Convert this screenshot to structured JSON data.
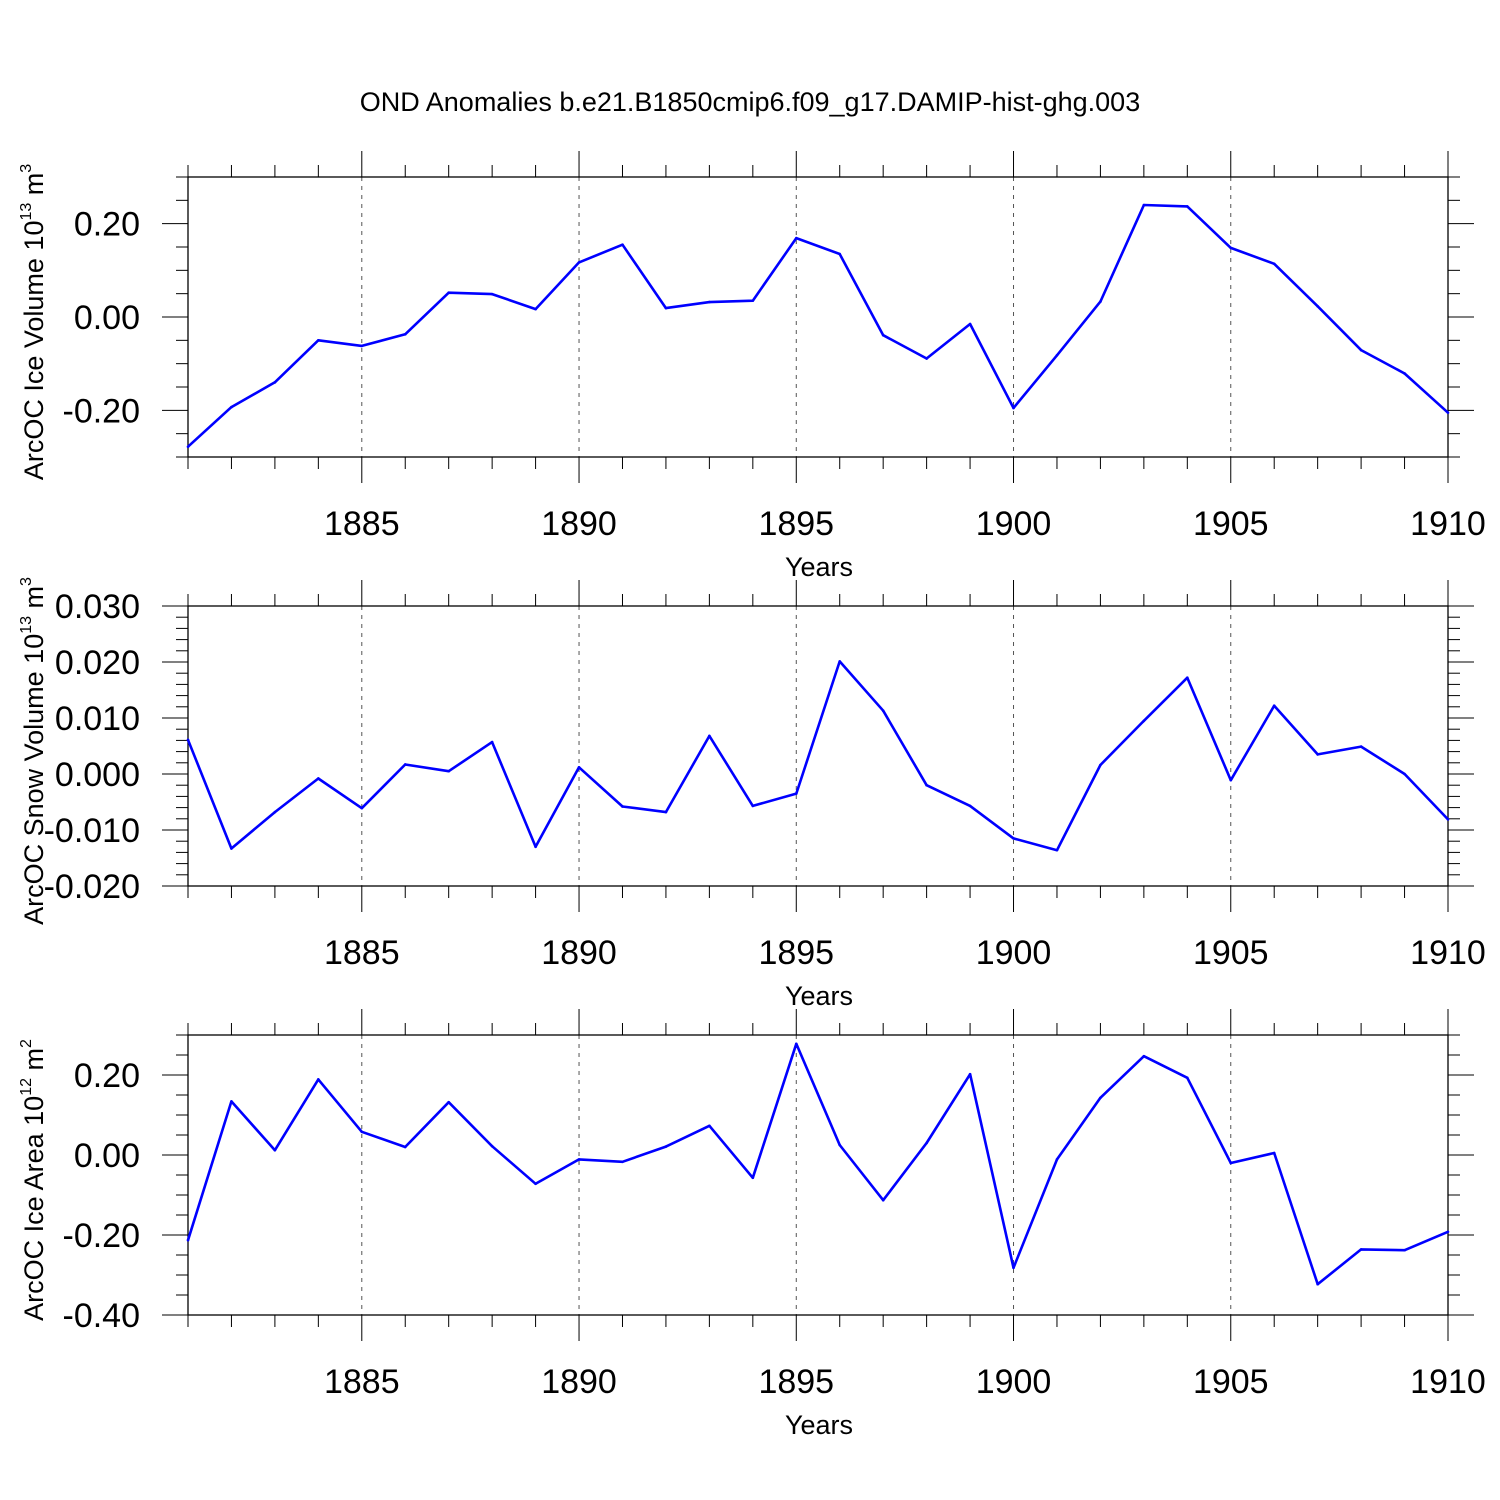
{
  "title": "OND Anomalies b.e21.B1850cmip6.f09_g17.DAMIP-hist-ghg.003",
  "colors": {
    "line": "#0000ff",
    "frame": "#000000",
    "grid": "#555555"
  },
  "chart_data": [
    {
      "type": "line",
      "ylabel": {
        "text": "ArcOC Ice Volume 10",
        "exp": "13",
        "unit": " m",
        "unit_exp": "3"
      },
      "xlabel": "Years",
      "xlim": [
        1881,
        1910
      ],
      "ylim": [
        -0.3,
        0.3
      ],
      "xticks": [
        1885,
        1890,
        1895,
        1900,
        1905,
        1910
      ],
      "xtick_labels": [
        "1885",
        "1890",
        "1895",
        "1900",
        "1905",
        "1910"
      ],
      "yticks": [
        -0.2,
        0.0,
        0.2
      ],
      "ytick_labels": [
        "-0.20",
        "0.00",
        "0.20"
      ],
      "yminor_step": 0.05,
      "grid": "x-dashed",
      "series": [
        {
          "name": "ArcOC Ice Volume",
          "x": [
            1881,
            1882,
            1883,
            1884,
            1885,
            1886,
            1887,
            1888,
            1889,
            1890,
            1891,
            1892,
            1893,
            1894,
            1895,
            1896,
            1897,
            1898,
            1899,
            1900,
            1901,
            1902,
            1903,
            1904,
            1905,
            1906,
            1907,
            1908,
            1909,
            1910
          ],
          "values": [
            -0.278,
            -0.193,
            -0.14,
            -0.05,
            -0.062,
            -0.037,
            0.052,
            0.049,
            0.017,
            0.117,
            0.155,
            0.019,
            0.032,
            0.035,
            0.169,
            0.135,
            -0.039,
            -0.089,
            -0.015,
            -0.195,
            -0.082,
            0.033,
            0.24,
            0.237,
            0.148,
            0.114,
            0.023,
            -0.071,
            -0.121,
            -0.205
          ]
        }
      ]
    },
    {
      "type": "line",
      "ylabel": {
        "text": "ArcOC Snow Volume 10",
        "exp": "13",
        "unit": " m",
        "unit_exp": "3"
      },
      "xlabel": "Years",
      "xlim": [
        1881,
        1910
      ],
      "ylim": [
        -0.02,
        0.03
      ],
      "xticks": [
        1885,
        1890,
        1895,
        1900,
        1905,
        1910
      ],
      "xtick_labels": [
        "1885",
        "1890",
        "1895",
        "1900",
        "1905",
        "1910"
      ],
      "yticks": [
        -0.02,
        -0.01,
        0.0,
        0.01,
        0.02,
        0.03
      ],
      "ytick_labels": [
        "-0.020",
        "-0.010",
        "0.000",
        "0.010",
        "0.020",
        "0.030"
      ],
      "yminor_step": 0.002,
      "grid": "x-dashed",
      "series": [
        {
          "name": "ArcOC Snow Volume",
          "x": [
            1881,
            1882,
            1883,
            1884,
            1885,
            1886,
            1887,
            1888,
            1889,
            1890,
            1891,
            1892,
            1893,
            1894,
            1895,
            1896,
            1897,
            1898,
            1899,
            1900,
            1901,
            1902,
            1903,
            1904,
            1905,
            1906,
            1907,
            1908,
            1909,
            1910
          ],
          "values": [
            0.0061,
            -0.0133,
            -0.0068,
            -0.0008,
            -0.0061,
            0.0017,
            0.0005,
            0.0057,
            -0.013,
            0.0012,
            -0.0058,
            -0.0068,
            0.0068,
            -0.0057,
            -0.0035,
            0.0201,
            0.0113,
            -0.002,
            -0.0057,
            -0.0115,
            -0.0136,
            0.0016,
            0.0095,
            0.0172,
            -0.0011,
            0.0122,
            0.0035,
            0.0049,
            0.0,
            -0.0081
          ]
        }
      ]
    },
    {
      "type": "line",
      "ylabel": {
        "text": "ArcOC Ice Area 10",
        "exp": "12",
        "unit": " m",
        "unit_exp": "2"
      },
      "xlabel": "Years",
      "xlim": [
        1881,
        1910
      ],
      "ylim": [
        -0.4,
        0.3
      ],
      "xticks": [
        1885,
        1890,
        1895,
        1900,
        1905,
        1910
      ],
      "xtick_labels": [
        "1885",
        "1890",
        "1895",
        "1900",
        "1905",
        "1910"
      ],
      "yticks": [
        -0.4,
        -0.2,
        0.0,
        0.2
      ],
      "ytick_labels": [
        "-0.40",
        "-0.20",
        "0.00",
        "0.20"
      ],
      "yminor_step": 0.05,
      "grid": "x-dashed",
      "series": [
        {
          "name": "ArcOC Ice Area",
          "x": [
            1881,
            1882,
            1883,
            1884,
            1885,
            1886,
            1887,
            1888,
            1889,
            1890,
            1891,
            1892,
            1893,
            1894,
            1895,
            1896,
            1897,
            1898,
            1899,
            1900,
            1901,
            1902,
            1903,
            1904,
            1905,
            1906,
            1907,
            1908,
            1909,
            1910
          ],
          "values": [
            -0.213,
            0.134,
            0.012,
            0.189,
            0.058,
            0.02,
            0.132,
            0.022,
            -0.072,
            -0.011,
            -0.017,
            0.021,
            0.073,
            -0.057,
            0.278,
            0.025,
            -0.113,
            0.03,
            0.202,
            -0.282,
            -0.011,
            0.143,
            0.247,
            0.193,
            -0.02,
            0.005,
            -0.323,
            -0.236,
            -0.238,
            -0.192
          ]
        }
      ]
    }
  ]
}
